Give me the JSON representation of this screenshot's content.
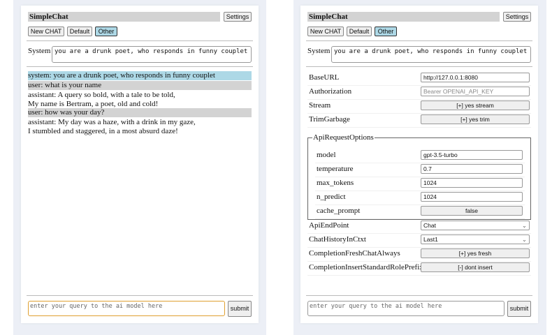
{
  "header": {
    "title": "SimpleChat",
    "settings_label": "Settings"
  },
  "toolbar": {
    "new_chat": "New CHAT",
    "default": "Default",
    "other": "Other"
  },
  "system": {
    "label": "System",
    "value": "you are a drunk poet, who responds in funny couplet"
  },
  "chat": {
    "messages": [
      {
        "role": "system",
        "lines": [
          "system: you are a drunk poet, who responds in funny couplet"
        ]
      },
      {
        "role": "user",
        "lines": [
          "user: what is your name"
        ]
      },
      {
        "role": "assistant",
        "lines": [
          "assistant: A query so bold, with a tale to be told,",
          "My name is Bertram, a poet, old and cold!"
        ]
      },
      {
        "role": "user",
        "lines": [
          "user: how was your day?"
        ]
      },
      {
        "role": "assistant",
        "lines": [
          "assistant: My day was a haze, with a drink in my gaze,",
          "I stumbled and staggered, in a most absurd daze!"
        ]
      }
    ]
  },
  "input": {
    "placeholder": "enter your query to the ai model here",
    "submit": "submit"
  },
  "settings": {
    "base_url": {
      "label": "BaseURL",
      "value": "http://127.0.0.1:8080"
    },
    "authorization": {
      "label": "Authorization",
      "placeholder": "Bearer OPENAI_API_KEY"
    },
    "stream": {
      "label": "Stream",
      "value": "[+] yes stream"
    },
    "trim_garbage": {
      "label": "TrimGarbage",
      "value": "[+] yes trim"
    },
    "api_request_options": {
      "legend": "ApiRequestOptions",
      "model": {
        "label": "model",
        "value": "gpt-3.5-turbo"
      },
      "temperature": {
        "label": "temperature",
        "value": "0.7"
      },
      "max_tokens": {
        "label": "max_tokens",
        "value": "1024"
      },
      "n_predict": {
        "label": "n_predict",
        "value": "1024"
      },
      "cache_prompt": {
        "label": "cache_prompt",
        "value": "false"
      }
    },
    "api_endpoint": {
      "label": "ApiEndPoint",
      "value": "Chat"
    },
    "chat_history": {
      "label": "ChatHistoryInCtxt",
      "value": "Last1"
    },
    "fresh_chat": {
      "label": "CompletionFreshChatAlways",
      "value": "[+] yes fresh"
    },
    "insert_prefix": {
      "label": "CompletionInsertStandardRolePrefix",
      "value": "[-] dont insert"
    }
  },
  "colors": {
    "system_msg": "#add8e6",
    "user_msg": "#d3d3d3",
    "selected_button": "#add8e6",
    "focus_border": "#e0a030"
  }
}
